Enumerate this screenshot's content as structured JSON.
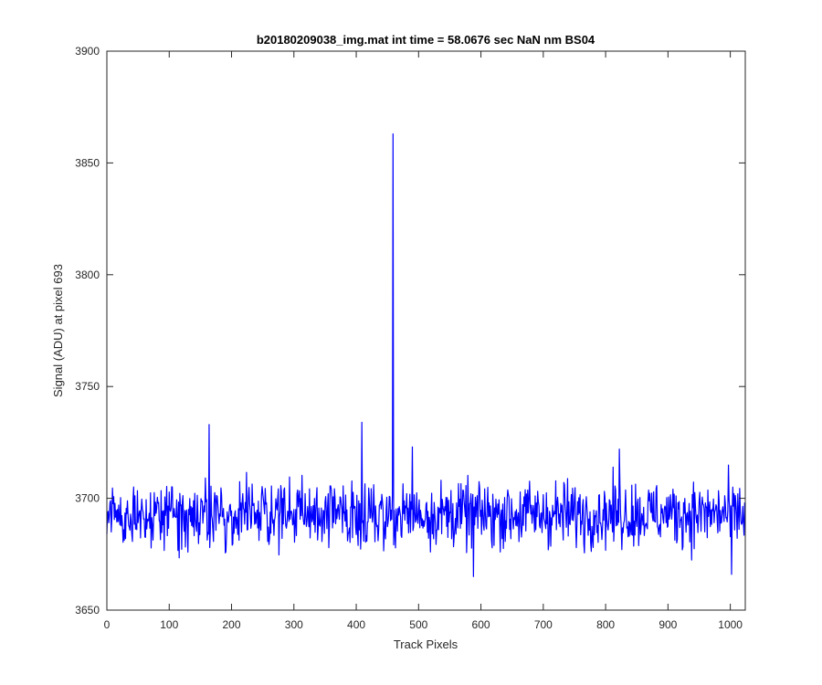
{
  "chart_data": {
    "type": "line",
    "title": "b20180209038_img.mat int time = 58.0676 sec  NaN nm BS04",
    "xlabel": "Track Pixels",
    "ylabel": "Signal (ADU) at pixel 693",
    "xlim": [
      0,
      1024
    ],
    "ylim": [
      3650,
      3900
    ],
    "xticks": [
      0,
      100,
      200,
      300,
      400,
      500,
      600,
      700,
      800,
      900,
      1000
    ],
    "yticks": [
      3650,
      3700,
      3750,
      3800,
      3850,
      3900
    ],
    "grid": false,
    "legend": "none",
    "series": [
      {
        "color": "#0000ff",
        "points": 1024,
        "baseline": 3693,
        "typical_range": [
          3670,
          3715
        ],
        "peaks": [
          {
            "x": 164,
            "y": 3733
          },
          {
            "x": 409,
            "y": 3734
          },
          {
            "x": 459,
            "y": 3863
          },
          {
            "x": 490,
            "y": 3723
          },
          {
            "x": 588,
            "y": 3665
          },
          {
            "x": 822,
            "y": 3722
          },
          {
            "x": 1002,
            "y": 3666
          }
        ]
      }
    ]
  }
}
